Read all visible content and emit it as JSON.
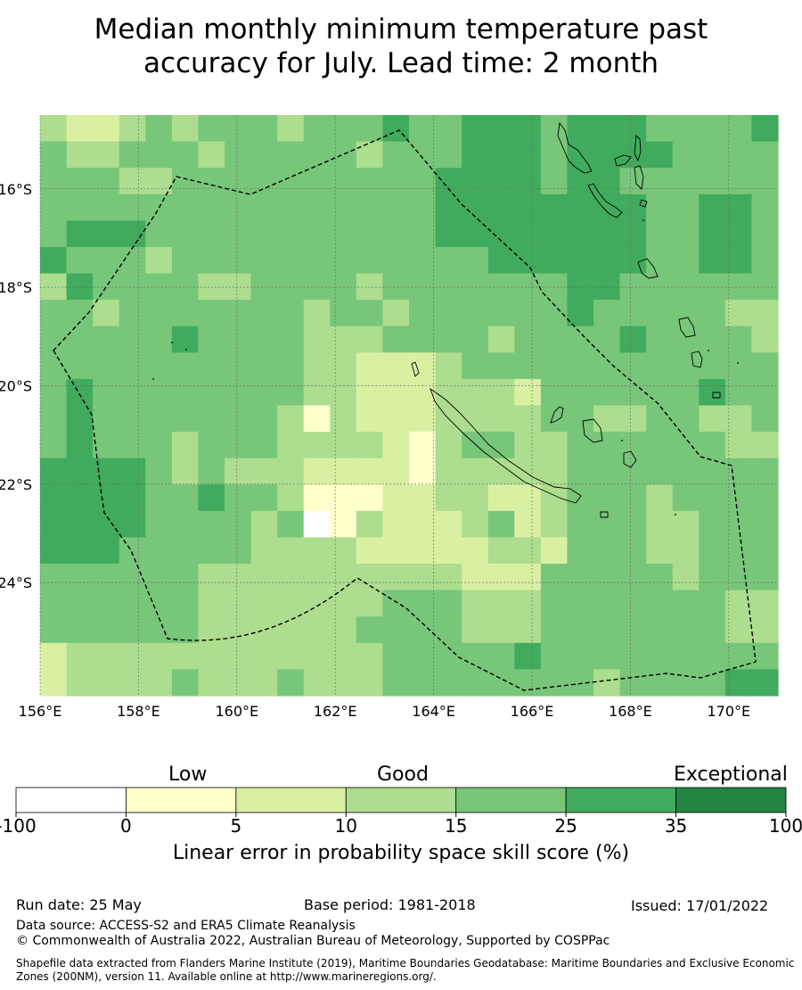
{
  "title": {
    "line1": "Median monthly minimum temperature past",
    "line2": "accuracy for July. Lead time: 2 month"
  },
  "map": {
    "lon_range": [
      156,
      171
    ],
    "lat_range": [
      -14.5,
      -26.3
    ],
    "cell_size_deg": 0.833,
    "x_ticks": [
      "156°E",
      "158°E",
      "160°E",
      "162°E",
      "164°E",
      "166°E",
      "168°E",
      "170°E"
    ],
    "y_ticks": [
      "16°S",
      "18°S",
      "20°S",
      "22°S",
      "24°S"
    ],
    "skill_grid": [
      [
        3,
        2,
        2,
        3,
        4,
        3,
        4,
        4,
        4,
        3,
        4,
        4,
        4,
        5,
        4,
        4,
        5,
        5,
        5,
        4,
        5,
        5,
        5,
        4,
        4,
        4,
        4,
        5
      ],
      [
        4,
        3,
        3,
        4,
        4,
        4,
        3,
        4,
        4,
        4,
        4,
        4,
        3,
        4,
        4,
        4,
        5,
        5,
        5,
        4,
        5,
        5,
        5,
        5,
        4,
        4,
        4,
        4
      ],
      [
        4,
        4,
        4,
        3,
        3,
        4,
        4,
        4,
        4,
        4,
        4,
        4,
        4,
        4,
        4,
        5,
        5,
        5,
        5,
        4,
        5,
        5,
        4,
        4,
        4,
        4,
        4,
        4
      ],
      [
        4,
        4,
        4,
        4,
        4,
        4,
        4,
        4,
        4,
        4,
        4,
        4,
        4,
        4,
        4,
        5,
        5,
        5,
        5,
        5,
        5,
        5,
        5,
        4,
        4,
        5,
        5,
        4
      ],
      [
        4,
        5,
        5,
        5,
        4,
        4,
        4,
        4,
        4,
        4,
        4,
        4,
        4,
        4,
        4,
        5,
        5,
        5,
        5,
        5,
        5,
        5,
        5,
        4,
        4,
        5,
        5,
        4
      ],
      [
        5,
        4,
        4,
        4,
        3,
        4,
        4,
        4,
        4,
        4,
        4,
        4,
        4,
        4,
        4,
        4,
        4,
        5,
        5,
        5,
        5,
        5,
        5,
        4,
        4,
        5,
        5,
        4
      ],
      [
        3,
        5,
        4,
        4,
        4,
        4,
        3,
        3,
        4,
        4,
        4,
        4,
        3,
        4,
        4,
        4,
        4,
        4,
        4,
        4,
        5,
        5,
        4,
        4,
        4,
        4,
        4,
        4
      ],
      [
        4,
        4,
        3,
        4,
        4,
        4,
        4,
        4,
        4,
        4,
        3,
        4,
        4,
        3,
        4,
        4,
        4,
        4,
        4,
        4,
        5,
        4,
        4,
        4,
        4,
        4,
        3,
        3
      ],
      [
        4,
        4,
        4,
        4,
        4,
        5,
        4,
        4,
        4,
        4,
        3,
        3,
        3,
        4,
        4,
        4,
        4,
        3,
        4,
        4,
        4,
        4,
        5,
        4,
        4,
        4,
        4,
        3
      ],
      [
        4,
        4,
        4,
        4,
        4,
        4,
        4,
        4,
        4,
        4,
        3,
        3,
        2,
        2,
        2,
        3,
        4,
        4,
        4,
        4,
        4,
        4,
        4,
        4,
        4,
        4,
        4,
        4
      ],
      [
        4,
        5,
        4,
        4,
        4,
        4,
        4,
        4,
        4,
        4,
        3,
        3,
        2,
        2,
        2,
        3,
        3,
        3,
        2,
        4,
        4,
        4,
        4,
        4,
        4,
        5,
        4,
        4
      ],
      [
        4,
        5,
        4,
        4,
        4,
        4,
        4,
        4,
        4,
        3,
        1,
        3,
        2,
        2,
        2,
        3,
        3,
        3,
        3,
        4,
        4,
        3,
        3,
        4,
        4,
        3,
        3,
        4
      ],
      [
        4,
        5,
        4,
        4,
        4,
        3,
        4,
        4,
        4,
        3,
        3,
        3,
        3,
        2,
        1,
        3,
        4,
        4,
        3,
        3,
        4,
        4,
        4,
        4,
        4,
        4,
        3,
        3
      ],
      [
        5,
        5,
        5,
        5,
        4,
        3,
        4,
        3,
        3,
        3,
        2,
        2,
        2,
        2,
        1,
        3,
        3,
        3,
        3,
        3,
        4,
        4,
        4,
        4,
        4,
        4,
        4,
        4
      ],
      [
        5,
        5,
        5,
        5,
        4,
        4,
        5,
        4,
        4,
        3,
        1,
        1,
        1,
        2,
        2,
        3,
        3,
        2,
        2,
        3,
        4,
        4,
        4,
        3,
        4,
        4,
        4,
        4
      ],
      [
        5,
        5,
        5,
        5,
        4,
        4,
        4,
        4,
        3,
        4,
        0,
        1,
        3,
        2,
        2,
        2,
        3,
        4,
        2,
        3,
        4,
        4,
        4,
        3,
        3,
        4,
        4,
        4
      ],
      [
        5,
        5,
        5,
        4,
        4,
        4,
        4,
        4,
        3,
        3,
        3,
        3,
        2,
        2,
        2,
        2,
        2,
        3,
        3,
        2,
        4,
        4,
        4,
        3,
        3,
        4,
        4,
        4
      ],
      [
        4,
        4,
        4,
        4,
        4,
        4,
        3,
        3,
        3,
        3,
        3,
        3,
        3,
        3,
        3,
        3,
        2,
        2,
        2,
        4,
        4,
        4,
        4,
        4,
        3,
        4,
        4,
        4
      ],
      [
        4,
        4,
        4,
        4,
        4,
        4,
        3,
        3,
        3,
        3,
        3,
        3,
        3,
        4,
        4,
        4,
        3,
        3,
        3,
        4,
        4,
        4,
        4,
        4,
        4,
        4,
        3,
        3
      ],
      [
        4,
        4,
        4,
        4,
        4,
        4,
        3,
        3,
        3,
        3,
        3,
        3,
        4,
        4,
        4,
        4,
        3,
        3,
        3,
        4,
        4,
        4,
        4,
        4,
        4,
        4,
        3,
        3
      ],
      [
        2,
        3,
        3,
        3,
        3,
        3,
        3,
        3,
        3,
        3,
        3,
        3,
        3,
        4,
        4,
        4,
        4,
        4,
        5,
        4,
        4,
        4,
        4,
        4,
        4,
        4,
        4,
        4
      ],
      [
        2,
        3,
        3,
        3,
        3,
        4,
        3,
        3,
        3,
        4,
        3,
        3,
        3,
        4,
        4,
        4,
        4,
        4,
        4,
        4,
        4,
        3,
        4,
        4,
        4,
        4,
        5,
        5
      ]
    ]
  },
  "colorbar": {
    "colors": [
      "#ffffff",
      "#ffffcc",
      "#d9f0a3",
      "#addd8e",
      "#78c679",
      "#41ab5d",
      "#238443"
    ],
    "ticks": [
      "-100",
      "0",
      "5",
      "10",
      "15",
      "25",
      "35",
      "100"
    ],
    "levels": {
      "low": "Low",
      "good": "Good",
      "exceptional": "Exceptional"
    },
    "label": "Linear error in probability space skill score (%)"
  },
  "footer": {
    "run_date": "Run date: 25 May",
    "base_period": "Base period: 1981-2018",
    "issued": "Issued: 17/01/2022",
    "data_source": "Data source: ACCESS-S2 and ERA5 Climate Reanalysis",
    "copyright": "© Commonwealth of Australia 2022, Australian Bureau of Meteorology, Supported by COSPPac",
    "shapefile": "Shapefile data extracted from Flanders Marine Institute (2019), Maritime Boundaries Geodatabase: Maritime Boundaries and Exclusive Economic Zones (200NM), version 11. Available online at http://www.marineregions.org/."
  }
}
